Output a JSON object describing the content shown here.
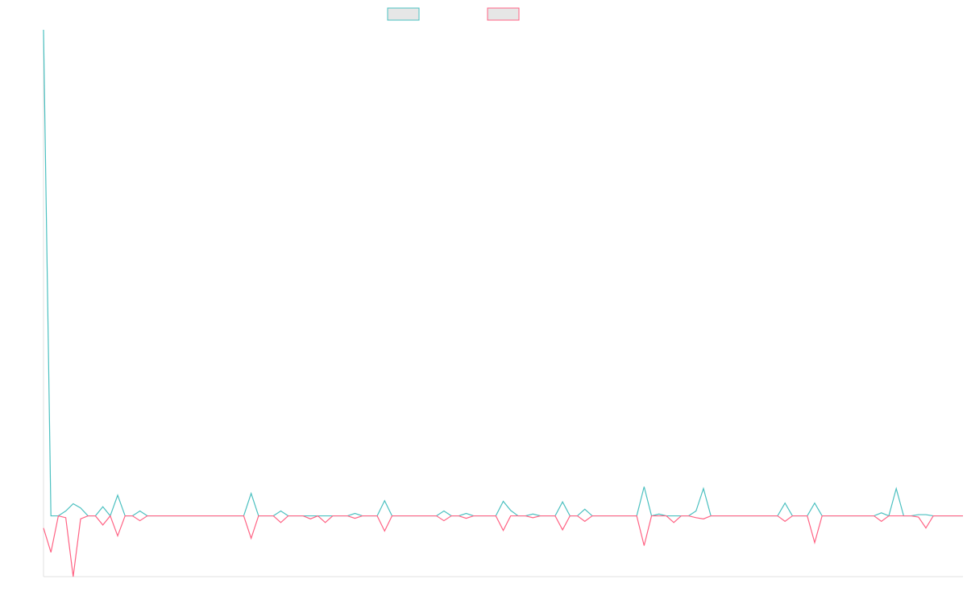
{
  "chart_data": {
    "type": "line",
    "categories": [
      null,
      null,
      null,
      null,
      null,
      null,
      null,
      null,
      null,
      null,
      null,
      null,
      null,
      null,
      null,
      null,
      null,
      null,
      null,
      null,
      null,
      null,
      null,
      null,
      null,
      null,
      null,
      null,
      null,
      null,
      null,
      null,
      null,
      null,
      null,
      null,
      null,
      null,
      null,
      null,
      null,
      null,
      null,
      null,
      null,
      null,
      null,
      null,
      null,
      null,
      null,
      null,
      null,
      null,
      null,
      null,
      null,
      null,
      null,
      null,
      null,
      null,
      null,
      null,
      null,
      null,
      null,
      null,
      null,
      null,
      null,
      null,
      null,
      null,
      null,
      null,
      null,
      null,
      null,
      null,
      null,
      null,
      null,
      null,
      null,
      null,
      null,
      null,
      null,
      null,
      null,
      null,
      null,
      null,
      null,
      null,
      null,
      null,
      null,
      null,
      null,
      null,
      null,
      null,
      null,
      null,
      null,
      null,
      null,
      null,
      null,
      null,
      null,
      null,
      null,
      null,
      null,
      null,
      null,
      null,
      null,
      null,
      null,
      null,
      null
    ],
    "series": [
      {
        "color": "#4bc0c0",
        "values": [
          80,
          0,
          0,
          0.8,
          2,
          1.3,
          0,
          0,
          1.5,
          0,
          3.4,
          0,
          0,
          0.8,
          0,
          0,
          0,
          0,
          0,
          0,
          0,
          0,
          0,
          0,
          0,
          0,
          0,
          0,
          3.7,
          0,
          0,
          0,
          0.8,
          0,
          0,
          0,
          0,
          0,
          0,
          0,
          0,
          0,
          0.4,
          0,
          0,
          0,
          2.5,
          0,
          0,
          0,
          0,
          0,
          0,
          0,
          0.8,
          0,
          0,
          0.4,
          0,
          0,
          0,
          0,
          2.4,
          0.9,
          0,
          0,
          0.3,
          0,
          0,
          0,
          2.3,
          0,
          0,
          1.1,
          0,
          0,
          0,
          0,
          0,
          0,
          0,
          4.8,
          0,
          0.3,
          0,
          0,
          0,
          0,
          0.8,
          4.5,
          0,
          0,
          0,
          0,
          0,
          0,
          0,
          0,
          0,
          0,
          2.1,
          0,
          0,
          0,
          2.1,
          0,
          0,
          0,
          0,
          0,
          0,
          0,
          0,
          0.5,
          0,
          4.5,
          0,
          0,
          0.2,
          0.2,
          0,
          0,
          0,
          0,
          0
        ]
      },
      {
        "color": "#ff6384",
        "values": [
          -2,
          -6,
          0,
          -0.3,
          -10,
          -0.5,
          0,
          0,
          -1.5,
          0,
          -3.3,
          0,
          0,
          -0.8,
          0,
          0,
          0,
          0,
          0,
          0,
          0,
          0,
          0,
          0,
          0,
          0,
          0,
          0,
          -3.7,
          0,
          0,
          0,
          -1.1,
          0,
          0,
          0,
          -0.5,
          0,
          -1.1,
          0,
          0,
          0,
          -0.4,
          0,
          0,
          0,
          -2.5,
          0,
          0,
          0,
          0,
          0,
          0,
          0,
          -0.8,
          0,
          0,
          -0.4,
          0,
          0,
          0,
          0,
          -2.4,
          0,
          0,
          0,
          -0.3,
          0,
          0,
          0,
          -2.3,
          0,
          0,
          -0.9,
          0,
          0,
          0,
          0,
          0,
          0,
          0,
          -4.9,
          0,
          0,
          0,
          -1.1,
          0,
          0,
          -0.3,
          -0.5,
          0,
          0,
          0,
          0,
          0,
          0,
          0,
          0,
          0,
          0,
          -0.9,
          0,
          0,
          0,
          -4.4,
          0,
          0,
          0,
          0,
          0,
          0,
          0,
          0,
          -0.9,
          0,
          0,
          0,
          0,
          -0.2,
          -2,
          0,
          0,
          0,
          0,
          0
        ]
      }
    ],
    "ylim": [
      -10,
      80
    ]
  }
}
